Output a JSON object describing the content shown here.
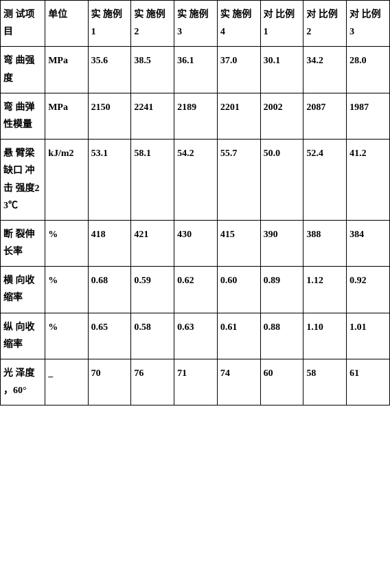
{
  "table": {
    "columns": [
      {
        "key": "item",
        "label": "测 试项目",
        "width": "11.5%"
      },
      {
        "key": "unit",
        "label": "单位",
        "width": "11%"
      },
      {
        "key": "ex1",
        "label": "实 施例 1",
        "width": "11.07%"
      },
      {
        "key": "ex2",
        "label": "实 施例 2",
        "width": "11.07%"
      },
      {
        "key": "ex3",
        "label": "实 施例 3",
        "width": "11.07%"
      },
      {
        "key": "ex4",
        "label": "实 施例 4",
        "width": "11.07%"
      },
      {
        "key": "cmp1",
        "label": "对 比例 1",
        "width": "11.07%"
      },
      {
        "key": "cmp2",
        "label": "对 比例 2",
        "width": "11.07%"
      },
      {
        "key": "cmp3",
        "label": "对 比例 3",
        "width": "11.07%"
      }
    ],
    "rows": [
      {
        "item": "弯 曲强度",
        "unit": "MPa",
        "ex1": "35.6",
        "ex2": "38.5",
        "ex3": "36.1",
        "ex4": "37.0",
        "cmp1": "30.1",
        "cmp2": "34.2",
        "cmp3": "28.0"
      },
      {
        "item": "弯 曲弹 性模量",
        "unit": "MPa",
        "ex1": "2150",
        "ex2": "2241",
        "ex3": "2189",
        "ex4": "2201",
        "cmp1": "2002",
        "cmp2": "2087",
        "cmp3": "1987"
      },
      {
        "item": "悬 臂梁 缺口 冲击 强度23℃",
        "unit": "kJ/m2",
        "ex1": "53.1",
        "ex2": "58.1",
        "ex3": "54.2",
        "ex4": "55.7",
        "cmp1": "50.0",
        "cmp2": "52.4",
        "cmp3": "41.2"
      },
      {
        "item": "断 裂伸 长率",
        "unit": "%",
        "ex1": "418",
        "ex2": "421",
        "ex3": "430",
        "ex4": "415",
        "cmp1": "390",
        "cmp2": "388",
        "cmp3": "384"
      },
      {
        "item": "横 向收 缩率",
        "unit": "%",
        "ex1": "0.68",
        "ex2": "0.59",
        "ex3": "0.62",
        "ex4": "0.60",
        "cmp1": "0.89",
        "cmp2": "1.12",
        "cmp3": "0.92"
      },
      {
        "item": "纵 向收 缩率",
        "unit": "%",
        "ex1": "0.65",
        "ex2": "0.58",
        "ex3": "0.63",
        "ex4": "0.61",
        "cmp1": "0.88",
        "cmp2": "1.10",
        "cmp3": "1.01"
      },
      {
        "item": "光 泽度 ，60°",
        "unit": "_",
        "ex1": "70",
        "ex2": "76",
        "ex3": "71",
        "ex4": "74",
        "cmp1": "60",
        "cmp2": "58",
        "cmp3": "61"
      }
    ],
    "border_color": "#000000",
    "background_color": "#ffffff",
    "font_size": 14,
    "font_weight": "bold"
  }
}
